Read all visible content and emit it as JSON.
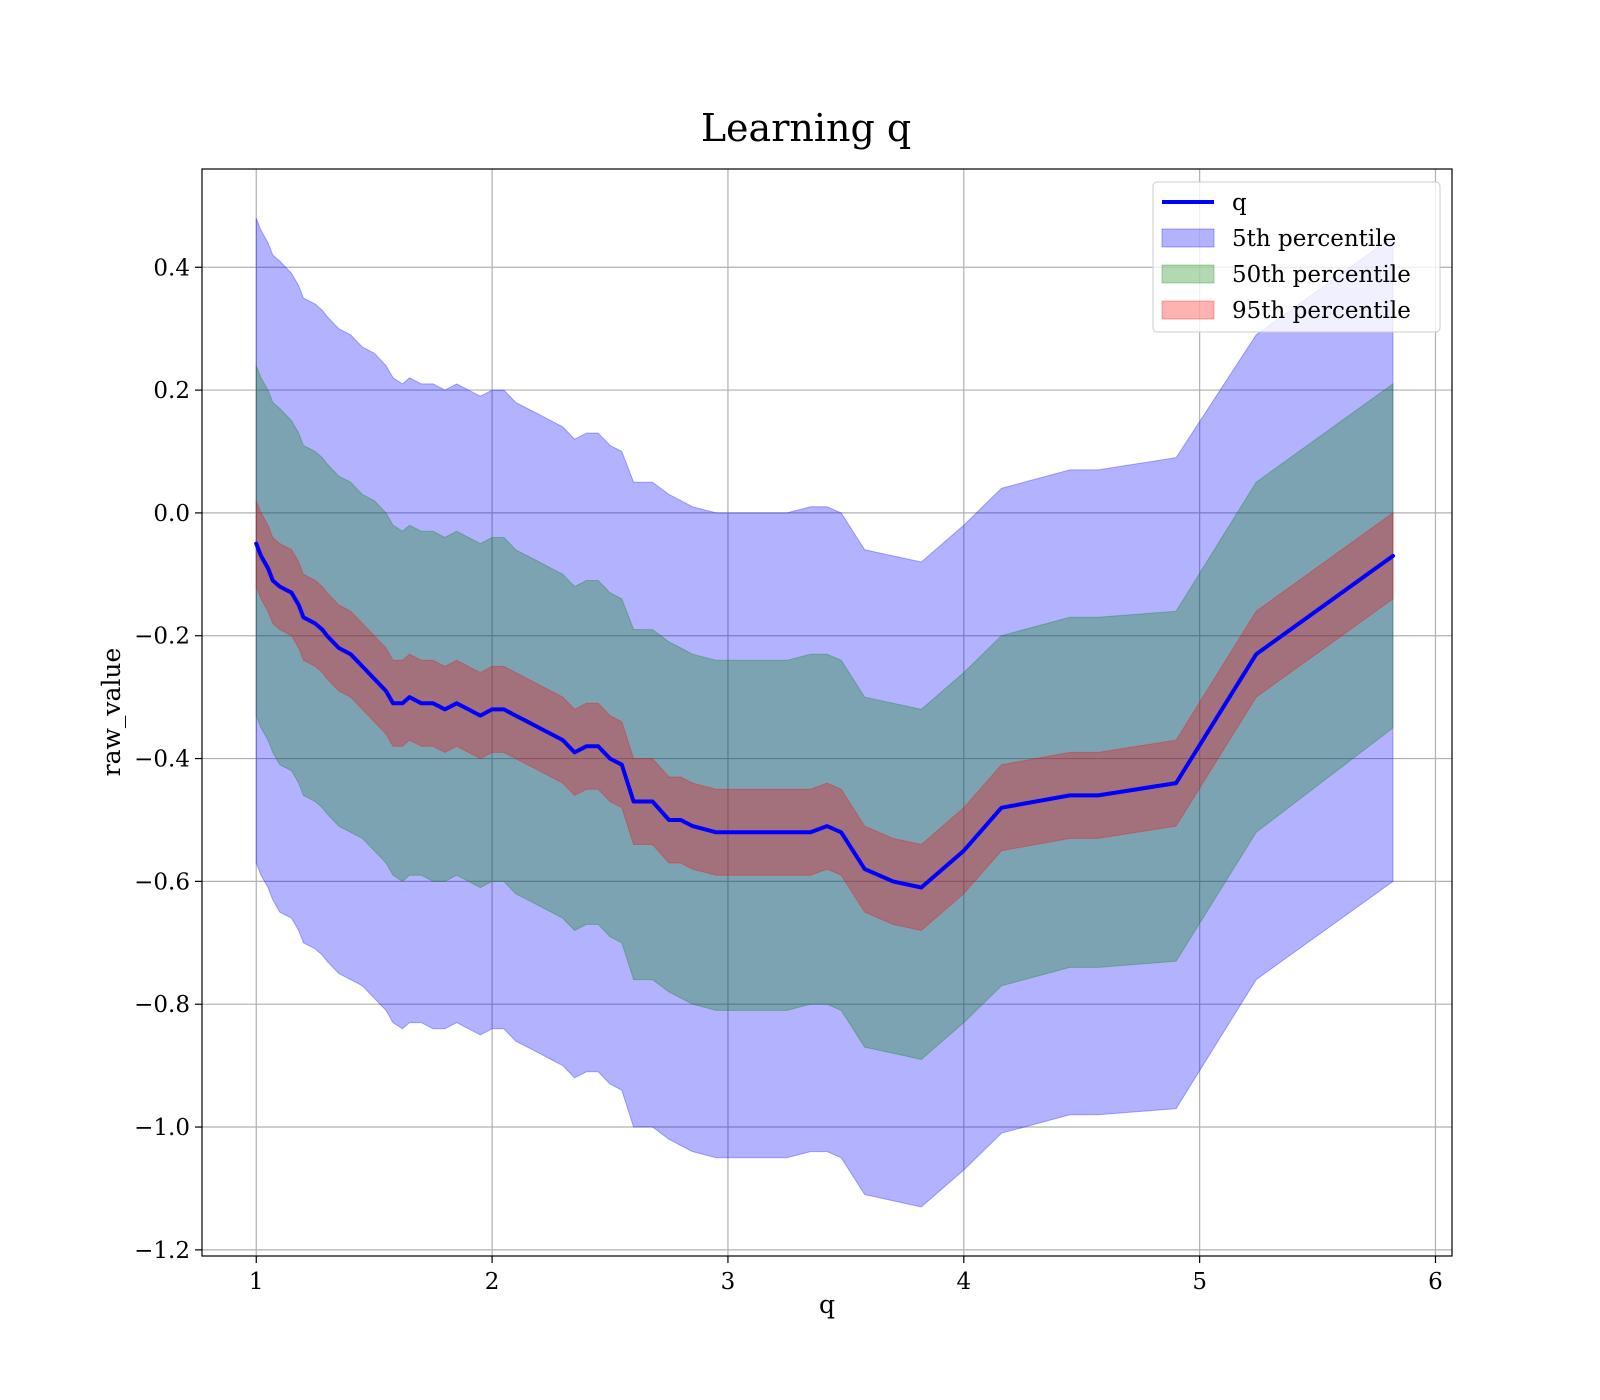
{
  "chart_data": {
    "type": "line",
    "title": "Learning q",
    "xlabel": "q",
    "ylabel": "raw_value",
    "xlim": [
      0.77,
      6.07
    ],
    "ylim": [
      -1.21,
      0.56
    ],
    "xticks": [
      1,
      2,
      3,
      4,
      5,
      6
    ],
    "xtick_labels": [
      "1",
      "2",
      "3",
      "4",
      "5",
      "6"
    ],
    "yticks": [
      0.4,
      0.2,
      0.0,
      -0.2,
      -0.4,
      -0.6,
      -0.8,
      -1.0,
      -1.2
    ],
    "ytick_labels": [
      "0.4",
      "0.2",
      "0.0",
      "−0.2",
      "−0.4",
      "−0.6",
      "−0.8",
      "−1.0",
      "−1.2"
    ],
    "grid": true,
    "legend_position": "top-right",
    "legend": [
      {
        "label": "q",
        "kind": "line",
        "color": "#0000ff"
      },
      {
        "label": "5th percentile",
        "kind": "patch",
        "color": "#0000ff"
      },
      {
        "label": "50th percentile",
        "kind": "patch",
        "color": "#008000"
      },
      {
        "label": "95th percentile",
        "kind": "patch",
        "color": "#ff0000"
      }
    ],
    "x": [
      1.0,
      1.02,
      1.05,
      1.07,
      1.1,
      1.15,
      1.18,
      1.2,
      1.25,
      1.28,
      1.3,
      1.35,
      1.4,
      1.45,
      1.5,
      1.55,
      1.58,
      1.62,
      1.65,
      1.7,
      1.75,
      1.8,
      1.85,
      1.9,
      1.95,
      2.0,
      2.05,
      2.1,
      2.15,
      2.2,
      2.25,
      2.3,
      2.35,
      2.4,
      2.45,
      2.5,
      2.55,
      2.6,
      2.68,
      2.75,
      2.8,
      2.85,
      2.95,
      3.05,
      3.15,
      3.25,
      3.35,
      3.42,
      3.48,
      3.58,
      3.7,
      3.82,
      4.0,
      4.16,
      4.45,
      4.57,
      4.9,
      5.24,
      5.82
    ],
    "series": [
      {
        "name": "q",
        "values": [
          -0.05,
          -0.07,
          -0.09,
          -0.11,
          -0.12,
          -0.13,
          -0.15,
          -0.17,
          -0.18,
          -0.19,
          -0.2,
          -0.22,
          -0.23,
          -0.25,
          -0.27,
          -0.29,
          -0.31,
          -0.31,
          -0.3,
          -0.31,
          -0.31,
          -0.32,
          -0.31,
          -0.32,
          -0.33,
          -0.32,
          -0.32,
          -0.33,
          -0.34,
          -0.35,
          -0.36,
          -0.37,
          -0.39,
          -0.38,
          -0.38,
          -0.4,
          -0.41,
          -0.47,
          -0.47,
          -0.5,
          -0.5,
          -0.51,
          -0.52,
          -0.52,
          -0.52,
          -0.52,
          -0.52,
          -0.51,
          -0.52,
          -0.58,
          -0.6,
          -0.61,
          -0.55,
          -0.48,
          -0.46,
          -0.46,
          -0.44,
          -0.23,
          -0.07
        ]
      },
      {
        "name": "5th percentile",
        "lower": [
          -0.57,
          -0.59,
          -0.61,
          -0.63,
          -0.65,
          -0.66,
          -0.68,
          -0.7,
          -0.71,
          -0.72,
          -0.73,
          -0.75,
          -0.76,
          -0.77,
          -0.79,
          -0.81,
          -0.83,
          -0.84,
          -0.83,
          -0.83,
          -0.84,
          -0.84,
          -0.83,
          -0.84,
          -0.85,
          -0.84,
          -0.84,
          -0.86,
          -0.87,
          -0.88,
          -0.89,
          -0.9,
          -0.92,
          -0.91,
          -0.91,
          -0.93,
          -0.94,
          -1.0,
          -1.0,
          -1.02,
          -1.03,
          -1.04,
          -1.05,
          -1.05,
          -1.05,
          -1.05,
          -1.04,
          -1.04,
          -1.05,
          -1.11,
          -1.12,
          -1.13,
          -1.07,
          -1.01,
          -0.98,
          -0.98,
          -0.97,
          -0.76,
          -0.6
        ],
        "upper": [
          0.48,
          0.46,
          0.44,
          0.42,
          0.41,
          0.39,
          0.37,
          0.35,
          0.34,
          0.33,
          0.32,
          0.3,
          0.29,
          0.27,
          0.26,
          0.24,
          0.22,
          0.21,
          0.22,
          0.21,
          0.21,
          0.2,
          0.21,
          0.2,
          0.19,
          0.2,
          0.2,
          0.18,
          0.17,
          0.16,
          0.15,
          0.14,
          0.12,
          0.13,
          0.13,
          0.11,
          0.1,
          0.05,
          0.05,
          0.03,
          0.02,
          0.01,
          0.0,
          0.0,
          0.0,
          0.0,
          0.01,
          0.01,
          0.0,
          -0.06,
          -0.07,
          -0.08,
          -0.02,
          0.04,
          0.07,
          0.07,
          0.09,
          0.29,
          0.45
        ]
      },
      {
        "name": "50th percentile",
        "lower": [
          -0.33,
          -0.35,
          -0.37,
          -0.39,
          -0.41,
          -0.42,
          -0.44,
          -0.46,
          -0.47,
          -0.48,
          -0.49,
          -0.51,
          -0.52,
          -0.53,
          -0.55,
          -0.57,
          -0.59,
          -0.6,
          -0.59,
          -0.59,
          -0.6,
          -0.6,
          -0.59,
          -0.6,
          -0.61,
          -0.6,
          -0.6,
          -0.62,
          -0.63,
          -0.64,
          -0.65,
          -0.66,
          -0.68,
          -0.67,
          -0.67,
          -0.69,
          -0.7,
          -0.76,
          -0.76,
          -0.78,
          -0.79,
          -0.8,
          -0.81,
          -0.81,
          -0.81,
          -0.81,
          -0.8,
          -0.8,
          -0.81,
          -0.87,
          -0.88,
          -0.89,
          -0.83,
          -0.77,
          -0.74,
          -0.74,
          -0.73,
          -0.52,
          -0.35
        ],
        "upper": [
          0.24,
          0.22,
          0.2,
          0.18,
          0.17,
          0.15,
          0.13,
          0.11,
          0.1,
          0.09,
          0.08,
          0.06,
          0.05,
          0.03,
          0.02,
          0.0,
          -0.02,
          -0.03,
          -0.02,
          -0.03,
          -0.03,
          -0.04,
          -0.03,
          -0.04,
          -0.05,
          -0.04,
          -0.04,
          -0.06,
          -0.07,
          -0.08,
          -0.09,
          -0.1,
          -0.12,
          -0.11,
          -0.11,
          -0.13,
          -0.14,
          -0.19,
          -0.19,
          -0.21,
          -0.22,
          -0.23,
          -0.24,
          -0.24,
          -0.24,
          -0.24,
          -0.23,
          -0.23,
          -0.24,
          -0.3,
          -0.31,
          -0.32,
          -0.26,
          -0.2,
          -0.17,
          -0.17,
          -0.16,
          0.05,
          0.21
        ]
      },
      {
        "name": "95th percentile",
        "lower": [
          -0.12,
          -0.14,
          -0.16,
          -0.18,
          -0.19,
          -0.2,
          -0.22,
          -0.24,
          -0.25,
          -0.26,
          -0.27,
          -0.29,
          -0.3,
          -0.32,
          -0.34,
          -0.36,
          -0.38,
          -0.38,
          -0.37,
          -0.38,
          -0.38,
          -0.39,
          -0.38,
          -0.39,
          -0.4,
          -0.39,
          -0.39,
          -0.4,
          -0.41,
          -0.42,
          -0.43,
          -0.44,
          -0.46,
          -0.45,
          -0.45,
          -0.47,
          -0.48,
          -0.54,
          -0.54,
          -0.57,
          -0.57,
          -0.58,
          -0.59,
          -0.59,
          -0.59,
          -0.59,
          -0.59,
          -0.58,
          -0.59,
          -0.65,
          -0.67,
          -0.68,
          -0.62,
          -0.55,
          -0.53,
          -0.53,
          -0.51,
          -0.3,
          -0.14
        ],
        "upper": [
          0.02,
          0.0,
          -0.02,
          -0.04,
          -0.05,
          -0.06,
          -0.08,
          -0.1,
          -0.11,
          -0.12,
          -0.13,
          -0.15,
          -0.16,
          -0.18,
          -0.2,
          -0.22,
          -0.24,
          -0.24,
          -0.23,
          -0.24,
          -0.24,
          -0.25,
          -0.24,
          -0.25,
          -0.26,
          -0.25,
          -0.25,
          -0.26,
          -0.27,
          -0.28,
          -0.29,
          -0.3,
          -0.32,
          -0.31,
          -0.31,
          -0.33,
          -0.34,
          -0.4,
          -0.4,
          -0.43,
          -0.43,
          -0.44,
          -0.45,
          -0.45,
          -0.45,
          -0.45,
          -0.45,
          -0.44,
          -0.45,
          -0.51,
          -0.53,
          -0.54,
          -0.48,
          -0.41,
          -0.39,
          -0.39,
          -0.37,
          -0.16,
          0.0
        ]
      }
    ]
  },
  "colors": {
    "line": "#0000ff",
    "band_5": "#0000ff",
    "band_50": "#008000",
    "band_95": "#ff0000",
    "grid": "#b0b0b0"
  }
}
